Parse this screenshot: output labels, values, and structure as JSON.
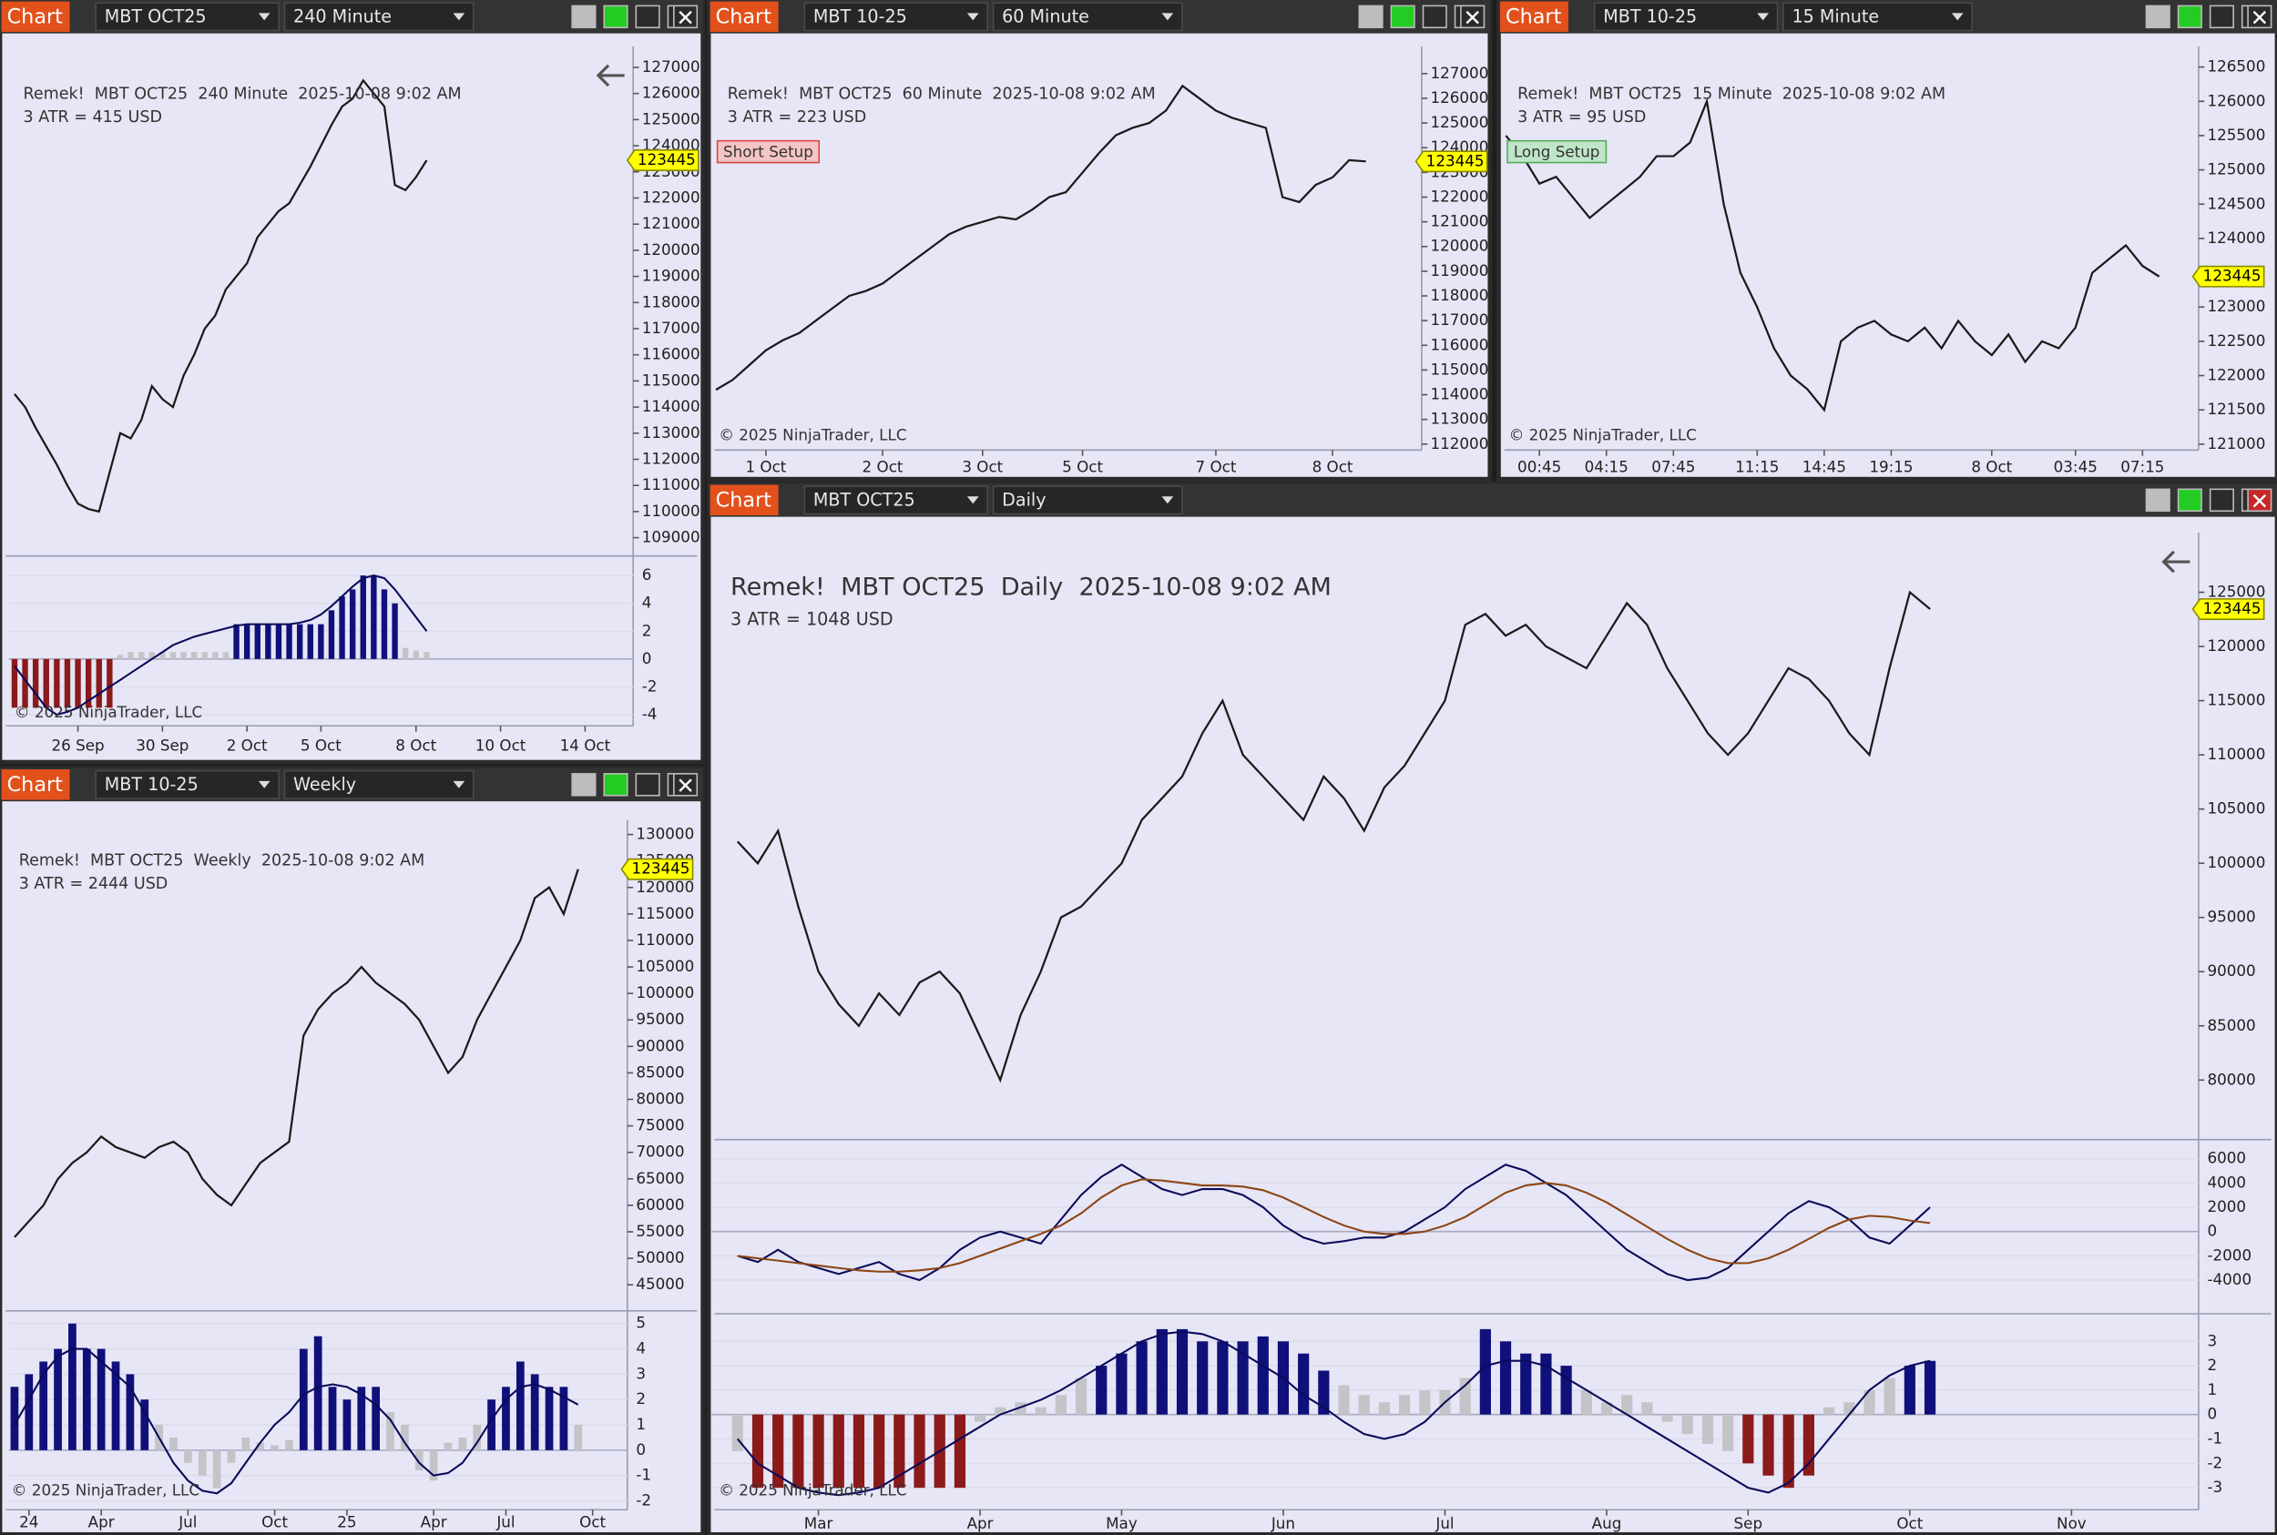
{
  "windows": [
    {
      "toolbar": {
        "button": "Chart",
        "instrument": "MBT OCT25",
        "interval": "240 Minute"
      }
    },
    {
      "toolbar": {
        "button": "Chart",
        "instrument": "MBT 10-25",
        "interval": "60 Minute"
      }
    },
    {
      "toolbar": {
        "button": "Chart",
        "instrument": "MBT 10-25",
        "interval": "15 Minute"
      }
    },
    {
      "toolbar": {
        "button": "Chart",
        "instrument": "MBT 10-25",
        "interval": "Weekly"
      }
    },
    {
      "toolbar": {
        "button": "Chart",
        "instrument": "MBT OCT25",
        "interval": "Daily"
      }
    }
  ],
  "chart_data": [
    {
      "type": "line",
      "title": "Remek!  MBT OCT25  240 Minute  2025-10-08 9:02 AM",
      "subtitle": "3 ATR = 415 USD",
      "copyright": "© 2025 NinjaTrader, LLC",
      "last_price": 123445,
      "color": "#1a1a1a",
      "xlim": [
        0,
        58
      ],
      "xticks": [
        {
          "value": 6,
          "label": "26 Sep"
        },
        {
          "value": 14,
          "label": "30 Sep"
        },
        {
          "value": 22,
          "label": "2 Oct"
        },
        {
          "value": 29,
          "label": "5 Oct"
        },
        {
          "value": 38,
          "label": "8 Oct"
        },
        {
          "value": 46,
          "label": "10 Oct"
        },
        {
          "value": 54,
          "label": "14 Oct"
        }
      ],
      "ylim": [
        108300,
        127800
      ],
      "yticks": [
        109000,
        110000,
        111000,
        112000,
        113000,
        114000,
        115000,
        116000,
        117000,
        118000,
        119000,
        120000,
        121000,
        122000,
        123000,
        124000,
        125000,
        126000,
        127000
      ],
      "values": [
        114500,
        114000,
        113200,
        112500,
        111800,
        111000,
        110300,
        110100,
        110000,
        111500,
        113000,
        112800,
        113500,
        114800,
        114300,
        114000,
        115200,
        116000,
        117000,
        117500,
        118500,
        119000,
        119500,
        120500,
        121000,
        121500,
        121800,
        122500,
        123200,
        124000,
        124800,
        125500,
        125800,
        126500,
        126000,
        125500,
        122500,
        122300,
        122800,
        123445
      ],
      "panes": [
        {
          "ylim": [
            -4.8,
            7.4
          ],
          "yticks": [
            -4,
            -2,
            0,
            2,
            4,
            6
          ],
          "bars": [
            -3.5,
            -3.5,
            -3.5,
            -3.5,
            -3.5,
            -3.5,
            -3.5,
            -3.5,
            -3.5,
            -3.5,
            0.3,
            0.5,
            0.5,
            0.5,
            0.5,
            0.5,
            0.5,
            0.5,
            0.5,
            0.5,
            0.5,
            2.5,
            2.5,
            2.5,
            2.5,
            2.5,
            2.5,
            2.5,
            2.5,
            2.5,
            3.5,
            4.5,
            5,
            6,
            6,
            5,
            4,
            0.8,
            0.6,
            0.5
          ],
          "series": [
            {
              "color": "#0a0a5a",
              "values": [
                -0.5,
                -1.5,
                -2.5,
                -3.5,
                -4,
                -3.8,
                -3.5,
                -3,
                -2.5,
                -2,
                -1.5,
                -1,
                -0.5,
                0,
                0.5,
                1,
                1.3,
                1.6,
                1.8,
                2,
                2.2,
                2.4,
                2.5,
                2.5,
                2.5,
                2.5,
                2.5,
                2.6,
                2.8,
                3.2,
                3.8,
                4.5,
                5.2,
                5.8,
                6,
                5.8,
                5,
                4,
                3,
                2
              ]
            }
          ]
        }
      ]
    },
    {
      "type": "line",
      "title": "Remek!  MBT OCT25  60 Minute  2025-10-08 9:02 AM",
      "subtitle": "3 ATR = 223 USD",
      "setup": "Short Setup",
      "copyright": "© 2025 NinjaTrader, LLC",
      "last_price": 123445,
      "color": "#1a1a1a",
      "xlim": [
        0,
        42
      ],
      "xticks": [
        {
          "value": 3,
          "label": "1 Oct"
        },
        {
          "value": 10,
          "label": "2 Oct"
        },
        {
          "value": 16,
          "label": "3 Oct"
        },
        {
          "value": 22,
          "label": "5 Oct"
        },
        {
          "value": 30,
          "label": "7 Oct"
        },
        {
          "value": 37,
          "label": "8 Oct"
        }
      ],
      "ylim": [
        111760,
        128100
      ],
      "yticks": [
        112000,
        113000,
        114000,
        115000,
        116000,
        117000,
        118000,
        119000,
        120000,
        121000,
        122000,
        123000,
        124000,
        125000,
        126000,
        127000
      ],
      "values": [
        114200,
        114600,
        115200,
        115800,
        116200,
        116500,
        117000,
        117500,
        118000,
        118200,
        118500,
        119000,
        119500,
        120000,
        120500,
        120800,
        121000,
        121200,
        121100,
        121500,
        122000,
        122200,
        123000,
        123800,
        124500,
        124800,
        125000,
        125500,
        126500,
        126000,
        125500,
        125200,
        125000,
        124800,
        122000,
        121800,
        122500,
        122800,
        123500,
        123445
      ],
      "panes": []
    },
    {
      "type": "line",
      "title": "Remek!  MBT OCT25  15 Minute  2025-10-08 9:02 AM",
      "subtitle": "3 ATR = 95 USD",
      "setup": "Long Setup",
      "copyright": "© 2025 NinjaTrader, LLC",
      "last_price": 123445,
      "color": "#1a1a1a",
      "xlim": [
        0,
        41
      ],
      "xticks": [
        {
          "value": 2,
          "label": "00:45"
        },
        {
          "value": 6,
          "label": "04:15"
        },
        {
          "value": 10,
          "label": "07:45"
        },
        {
          "value": 15,
          "label": "11:15"
        },
        {
          "value": 19,
          "label": "14:45"
        },
        {
          "value": 23,
          "label": "19:15"
        },
        {
          "value": 29,
          "label": "8 Oct"
        },
        {
          "value": 34,
          "label": "03:45"
        },
        {
          "value": 38,
          "label": "07:15"
        }
      ],
      "ylim": [
        120915,
        126800
      ],
      "yticks": [
        121000,
        121500,
        122000,
        122500,
        123000,
        123500,
        124000,
        124500,
        125000,
        125500,
        126000,
        126500
      ],
      "values": [
        125500,
        125200,
        124800,
        124900,
        124600,
        124300,
        124500,
        124700,
        124900,
        125200,
        125200,
        125400,
        126000,
        124500,
        123500,
        123000,
        122400,
        122000,
        121800,
        121500,
        122500,
        122700,
        122800,
        122600,
        122500,
        122700,
        122400,
        122800,
        122500,
        122300,
        122600,
        122200,
        122500,
        122400,
        122700,
        123500,
        123700,
        123900,
        123600,
        123445
      ],
      "panes": []
    },
    {
      "type": "line",
      "title": "Remek!  MBT OCT25  Weekly  2025-10-08 9:02 AM",
      "subtitle": "3 ATR = 2444 USD",
      "copyright": "© 2025 NinjaTrader, LLC",
      "last_price": 123445,
      "color": "#1a1a1a",
      "xlim": [
        0,
        42
      ],
      "xticks": [
        {
          "value": 1,
          "label": "24"
        },
        {
          "value": 6,
          "label": "Apr"
        },
        {
          "value": 12,
          "label": "Jul"
        },
        {
          "value": 18,
          "label": "Oct"
        },
        {
          "value": 23,
          "label": "25"
        },
        {
          "value": 29,
          "label": "Apr"
        },
        {
          "value": 34,
          "label": "Jul"
        },
        {
          "value": 40,
          "label": "Oct"
        }
      ],
      "ylim": [
        40900,
        132700
      ],
      "yticks": [
        45000,
        50000,
        55000,
        60000,
        65000,
        70000,
        75000,
        80000,
        85000,
        90000,
        95000,
        100000,
        105000,
        110000,
        115000,
        120000,
        125000,
        130000
      ],
      "values": [
        54000,
        57000,
        60000,
        65000,
        68000,
        70000,
        73000,
        71000,
        70000,
        69000,
        71000,
        72000,
        70000,
        65000,
        62000,
        60000,
        64000,
        68000,
        70000,
        72000,
        92000,
        97000,
        100000,
        102000,
        105000,
        102000,
        100000,
        98000,
        95000,
        90000,
        85000,
        88000,
        95000,
        100000,
        105000,
        110000,
        118000,
        120000,
        115000,
        123445
      ],
      "panes": [
        {
          "ylim": [
            -2.35,
            5.5
          ],
          "yticks": [
            -2,
            -1,
            0,
            1,
            2,
            3,
            4,
            5
          ],
          "bars": [
            2.5,
            3,
            3.5,
            4,
            5,
            4,
            4,
            3.5,
            3,
            2,
            1,
            0.5,
            -0.5,
            -1,
            -1.5,
            -0.5,
            0.5,
            0.3,
            0.2,
            0.4,
            4,
            4.5,
            2.5,
            2,
            2.5,
            2.5,
            1.5,
            1,
            -0.8,
            -1.2,
            0.3,
            0.5,
            1,
            2,
            2.5,
            3.5,
            3,
            2.5,
            2.5,
            1
          ],
          "series": [
            {
              "color": "#0a0a5a",
              "values": [
                1,
                2,
                3,
                3.7,
                4,
                4,
                3.5,
                3,
                2.5,
                1.5,
                0.5,
                -0.5,
                -1.2,
                -1.6,
                -1.7,
                -1.3,
                -0.5,
                0.3,
                1,
                1.5,
                2.2,
                2.5,
                2.6,
                2.5,
                2.2,
                1.8,
                1.2,
                0.3,
                -0.5,
                -1,
                -0.9,
                -0.5,
                0.3,
                1.2,
                2,
                2.5,
                2.6,
                2.4,
                2.1,
                1.8
              ]
            }
          ]
        }
      ]
    },
    {
      "type": "line",
      "title": "Remek!  MBT OCT25  Daily  2025-10-08 9:02 AM",
      "subtitle": "3 ATR = 1048 USD",
      "copyright": "© 2025 NinjaTrader, LLC",
      "last_price": 123445,
      "color": "#1a1a1a",
      "xlim": [
        -1,
        72
      ],
      "xticks": [
        {
          "value": 4,
          "label": "Mar"
        },
        {
          "value": 12,
          "label": "Apr"
        },
        {
          "value": 19,
          "label": "May"
        },
        {
          "value": 27,
          "label": "Jun"
        },
        {
          "value": 35,
          "label": "Jul"
        },
        {
          "value": 43,
          "label": "Aug"
        },
        {
          "value": 50,
          "label": "Sep"
        },
        {
          "value": 58,
          "label": "Oct"
        },
        {
          "value": 66,
          "label": "Nov"
        }
      ],
      "ylim": [
        74910,
        130490
      ],
      "yticks": [
        80000,
        85000,
        90000,
        95000,
        100000,
        105000,
        110000,
        115000,
        120000,
        125000
      ],
      "values": [
        102000,
        100000,
        103000,
        96000,
        90000,
        87000,
        85000,
        88000,
        86000,
        89000,
        90000,
        88000,
        84000,
        80000,
        86000,
        90000,
        95000,
        96000,
        98000,
        100000,
        104000,
        106000,
        108000,
        112000,
        115000,
        110000,
        108000,
        106000,
        104000,
        108000,
        106000,
        103000,
        107000,
        109000,
        112000,
        115000,
        122000,
        123000,
        121000,
        122000,
        120000,
        119000,
        118000,
        121000,
        124000,
        122000,
        118000,
        115000,
        112000,
        110000,
        112000,
        115000,
        118000,
        117000,
        115000,
        112000,
        110000,
        118000,
        125000,
        123445
      ],
      "panes": [
        {
          "ylim": [
            -6530,
            7570
          ],
          "yticks": [
            -4000,
            -2000,
            0,
            2000,
            4000,
            6000
          ],
          "series": [
            {
              "color": "#0a0a5a",
              "values": [
                -2000,
                -2500,
                -1500,
                -2500,
                -3000,
                -3500,
                -3000,
                -2500,
                -3500,
                -4000,
                -3000,
                -1500,
                -500,
                0,
                -500,
                -1000,
                1000,
                3000,
                4500,
                5500,
                4500,
                3500,
                3000,
                3500,
                3500,
                3000,
                2000,
                500,
                -500,
                -1000,
                -800,
                -500,
                -500,
                0,
                1000,
                2000,
                3500,
                4500,
                5500,
                5000,
                4000,
                3000,
                1500,
                0,
                -1500,
                -2500,
                -3500,
                -4000,
                -3800,
                -3000,
                -1500,
                0,
                1500,
                2500,
                2000,
                1000,
                -500,
                -1000,
                500,
                2000
              ]
            },
            {
              "color": "#8b4513",
              "values": [
                -2000,
                -2200,
                -2400,
                -2600,
                -2800,
                -3000,
                -3200,
                -3300,
                -3300,
                -3200,
                -3000,
                -2600,
                -2000,
                -1400,
                -800,
                -200,
                500,
                1500,
                2800,
                3800,
                4300,
                4200,
                4000,
                3800,
                3800,
                3700,
                3400,
                2800,
                2000,
                1200,
                500,
                0,
                -200,
                -200,
                0,
                500,
                1200,
                2200,
                3200,
                3800,
                4000,
                3800,
                3200,
                2400,
                1400,
                400,
                -600,
                -1500,
                -2200,
                -2600,
                -2600,
                -2200,
                -1500,
                -600,
                300,
                1000,
                1300,
                1200,
                900,
                700
              ]
            }
          ]
        },
        {
          "ylim": [
            -3.9,
            4.13
          ],
          "yticks": [
            -3,
            -2,
            -1,
            0,
            1,
            2,
            3
          ],
          "bars": [
            -1.5,
            -3,
            -3,
            -3,
            -3,
            -3,
            -3,
            -3,
            -3,
            -3,
            -3,
            -3,
            -0.3,
            0.3,
            0.5,
            0.3,
            0.8,
            1.5,
            2,
            2.5,
            3,
            3.5,
            3.5,
            3,
            3,
            3,
            3.2,
            3,
            2.5,
            1.8,
            1.2,
            0.8,
            0.5,
            0.8,
            1,
            1,
            1.5,
            3.5,
            3,
            2.5,
            2.5,
            2,
            1,
            0.5,
            0.8,
            0.5,
            -0.3,
            -0.8,
            -1.2,
            -1.5,
            -2,
            -2.5,
            -3,
            -2.5,
            0.3,
            0.5,
            1,
            1.5,
            2,
            2.2
          ],
          "series": [
            {
              "color": "#0a0a5a",
              "values": [
                -1,
                -2,
                -2.5,
                -3,
                -3.2,
                -3.3,
                -3.2,
                -3,
                -2.5,
                -2,
                -1.5,
                -1,
                -0.5,
                0,
                0.3,
                0.6,
                1,
                1.5,
                2,
                2.5,
                3,
                3.3,
                3.4,
                3.3,
                3,
                2.5,
                2,
                1.5,
                0.8,
                0.3,
                -0.3,
                -0.8,
                -1,
                -0.8,
                -0.3,
                0.5,
                1.2,
                2,
                2.2,
                2.2,
                2,
                1.5,
                1,
                0.5,
                0,
                -0.5,
                -1,
                -1.5,
                -2,
                -2.5,
                -3,
                -3.2,
                -2.8,
                -2,
                -1,
                0,
                1,
                1.6,
                2,
                2.2
              ]
            }
          ]
        }
      ]
    }
  ]
}
